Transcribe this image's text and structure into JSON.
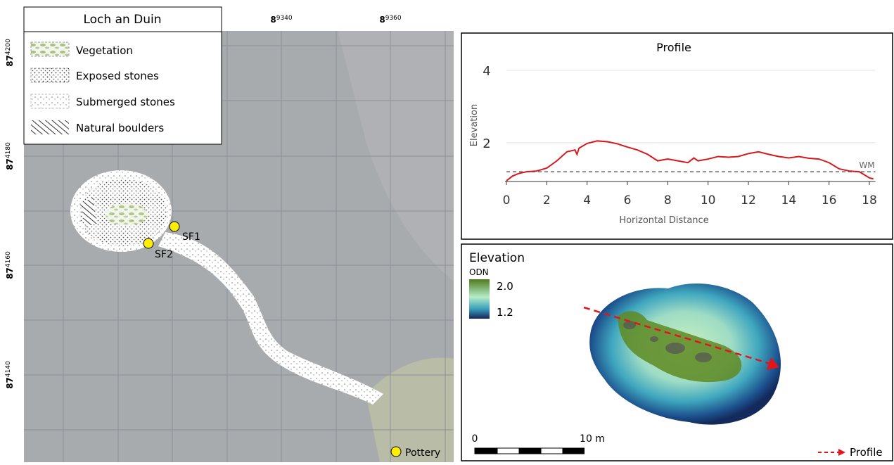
{
  "map": {
    "title": "Loch an Duin",
    "legend": [
      "Vegetation",
      "Exposed stones",
      "Submerged stones",
      "Natural boulders"
    ],
    "easting_labels": [
      {
        "major": "8",
        "minor": "9340"
      },
      {
        "major": "8",
        "minor": "9360"
      }
    ],
    "northing_labels": [
      {
        "major": "87",
        "minor": "4200"
      },
      {
        "major": "87",
        "minor": "4180"
      },
      {
        "major": "87",
        "minor": "4160"
      },
      {
        "major": "87",
        "minor": "4140"
      }
    ],
    "points": [
      "SF1",
      "SF2",
      "Pottery"
    ]
  },
  "chart_data": {
    "type": "line",
    "title": "Profile",
    "x_label": "Horizontal Distance",
    "y_label": "Elevation",
    "x": [
      0,
      0.3,
      0.6,
      1,
      1.5,
      2,
      2.5,
      3,
      3.4,
      3.5,
      3.6,
      4,
      4.5,
      5,
      5.5,
      6,
      6.5,
      7,
      7.5,
      8,
      8.5,
      9,
      9.3,
      9.5,
      10,
      10.5,
      11,
      11.5,
      12,
      12.5,
      13,
      13.5,
      14,
      14.5,
      15,
      15.5,
      16,
      16.5,
      17,
      17.5,
      18,
      18.2
    ],
    "values": [
      0.95,
      1.08,
      1.15,
      1.2,
      1.22,
      1.3,
      1.5,
      1.75,
      1.8,
      1.68,
      1.85,
      1.98,
      2.05,
      2.03,
      1.97,
      1.88,
      1.8,
      1.68,
      1.5,
      1.55,
      1.5,
      1.45,
      1.58,
      1.5,
      1.55,
      1.62,
      1.6,
      1.62,
      1.7,
      1.75,
      1.68,
      1.62,
      1.58,
      1.62,
      1.57,
      1.55,
      1.45,
      1.28,
      1.22,
      1.2,
      1.03,
      1.0
    ],
    "color": "#d7191c",
    "xlim": [
      0,
      18.3
    ],
    "ylim": [
      0.93,
      4.4
    ],
    "xticks": [
      0,
      2,
      4,
      6,
      8,
      10,
      12,
      14,
      16,
      18
    ],
    "yticks": [
      2,
      4
    ],
    "grid": true,
    "reference_line": {
      "value": 1.2,
      "label": "WM",
      "color": "#666666"
    }
  },
  "elevation_inset": {
    "title": "Elevation",
    "unit": "ODN",
    "legend_high": "2.0",
    "legend_low": "1.2",
    "scale_start": "0",
    "scale_end": "10 m",
    "profile_label": "Profile"
  }
}
